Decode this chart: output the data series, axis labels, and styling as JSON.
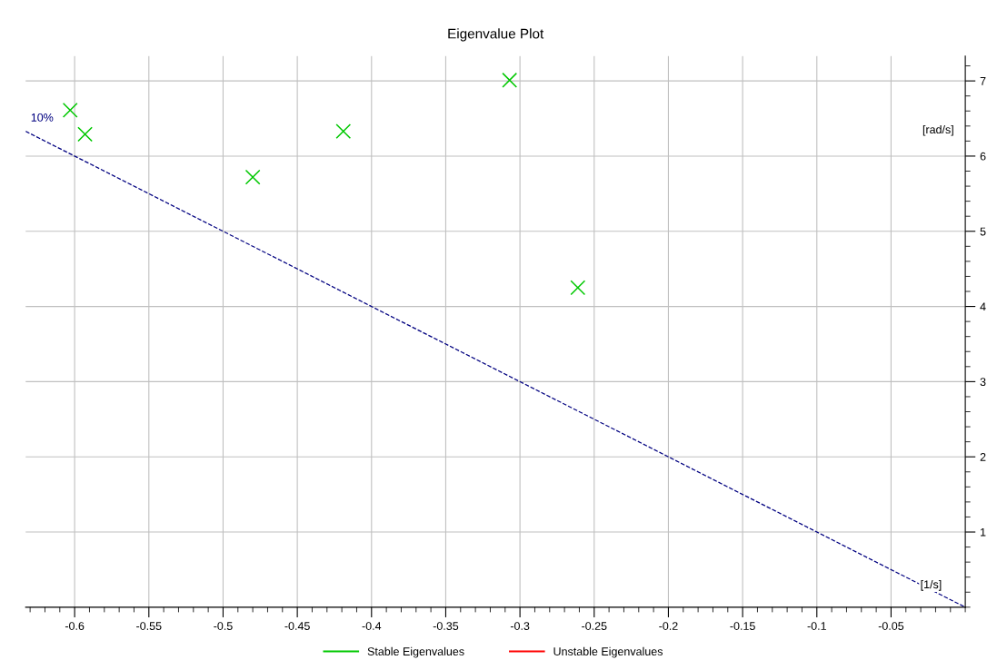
{
  "chart_data": {
    "type": "scatter",
    "title": "Eigenvalue Plot",
    "xlabel": "[1/s]",
    "ylabel": "[rad/s]",
    "xlim": [
      -0.633,
      0
    ],
    "ylim": [
      0,
      7.33
    ],
    "xticks": [
      -0.6,
      -0.55,
      -0.5,
      -0.45,
      -0.4,
      -0.35,
      -0.3,
      -0.25,
      -0.2,
      -0.15,
      -0.1,
      -0.05
    ],
    "yticks": [
      1,
      2,
      3,
      4,
      5,
      6,
      7
    ],
    "grid": true,
    "legend": "bottom",
    "series": [
      {
        "name": "Stable Eigenvalues",
        "color": "#00c800",
        "marker": "cross",
        "x": [
          -0.603,
          -0.593,
          -0.48,
          -0.419,
          -0.307,
          -0.261
        ],
        "values": [
          6.61,
          6.29,
          5.72,
          6.33,
          7.01,
          4.25
        ]
      },
      {
        "name": "Unstable Eigenvalues",
        "color": "#ff0000"
      },
      {
        "name": "10%",
        "type": "line",
        "color": "#000080",
        "line_style": "dashed",
        "x": [
          -0.633,
          0
        ],
        "values": [
          6.33,
          0
        ]
      }
    ]
  }
}
